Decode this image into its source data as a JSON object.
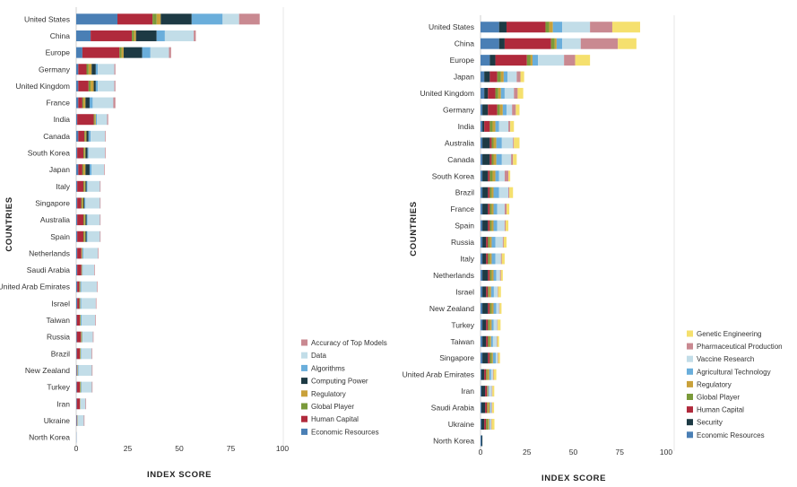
{
  "chart_data": [
    {
      "type": "bar",
      "orientation": "horizontal",
      "stacked": true,
      "xlabel": "INDEX SCORE",
      "ylabel": "COUNTRIES",
      "xlim": [
        0,
        100
      ],
      "xticks": [
        0,
        25,
        50,
        75,
        100
      ],
      "grid": false,
      "legend_position": "bottom-right",
      "legend_order": [
        "Accuracy of Top Models",
        "Data",
        "Algorithms",
        "Computing Power",
        "Regulatory",
        "Global Player",
        "Human Capital",
        "Economic Resources"
      ],
      "categories": [
        "United States",
        "China",
        "Europe",
        "Germany",
        "United Kingdom",
        "France",
        "India",
        "Canada",
        "South Korea",
        "Japan",
        "Italy",
        "Singapore",
        "Australia",
        "Spain",
        "Netherlands",
        "Saudi Arabia",
        "United Arab Emirates",
        "Israel",
        "Taiwan",
        "Russia",
        "Brazil",
        "New Zealand",
        "Turkey",
        "Iran",
        "Ukraine",
        "North Korea"
      ],
      "series": [
        {
          "name": "Economic Resources",
          "color": "#4a7fb5",
          "values": [
            20,
            7,
            3,
            1,
            1,
            1,
            0.5,
            1,
            0.5,
            1,
            0.5,
            0.5,
            0.5,
            0.5,
            0.5,
            0.5,
            0.5,
            0.5,
            0.3,
            0.3,
            0.3,
            0.3,
            0.3,
            0.3,
            0.3,
            0.1
          ]
        },
        {
          "name": "Human Capital",
          "color": "#b02a3c",
          "values": [
            17,
            20,
            18,
            4,
            5,
            2,
            8,
            3,
            3,
            2,
            3,
            2,
            3,
            3,
            2,
            2,
            1,
            1,
            1.5,
            2,
            1.5,
            0.2,
            1.5,
            1.5,
            0.2,
            0
          ]
        },
        {
          "name": "Global Player",
          "color": "#7a9a3a",
          "values": [
            2,
            1,
            1,
            1,
            1,
            0.5,
            0.5,
            0.5,
            0.5,
            0.5,
            0.5,
            0.5,
            0.5,
            0.5,
            0.2,
            0.2,
            0.2,
            0.3,
            0.2,
            0.2,
            0.2,
            0.1,
            0.2,
            0.1,
            0.1,
            0
          ]
        },
        {
          "name": "Regulatory",
          "color": "#c9a13a",
          "values": [
            2,
            1,
            1,
            1.5,
            1.5,
            1,
            0.5,
            0.5,
            0.5,
            1,
            0.5,
            0.5,
            0.5,
            0.5,
            0.3,
            0.2,
            0.3,
            0.2,
            0.2,
            0.3,
            0.2,
            0.2,
            0.3,
            0.1,
            0.1,
            0
          ]
        },
        {
          "name": "Computing Power",
          "color": "#1d3a44",
          "values": [
            15,
            10,
            9,
            2,
            1,
            2,
            0,
            1,
            1,
            2,
            0.5,
            0.5,
            0.5,
            0.5,
            0,
            0,
            0,
            0,
            0,
            0,
            0,
            0,
            0,
            0,
            0,
            0
          ]
        },
        {
          "name": "Algorithms",
          "color": "#6aaedb",
          "values": [
            15,
            4,
            4,
            1,
            1,
            1.5,
            0.5,
            1,
            0.5,
            1,
            0.5,
            0.5,
            0.5,
            0.5,
            0.5,
            0.3,
            0.5,
            0.5,
            0.5,
            0.3,
            0.3,
            0.3,
            0.3,
            0,
            0,
            0
          ]
        },
        {
          "name": "Data",
          "color": "#c2dde8",
          "values": [
            8,
            14,
            9,
            8,
            8,
            10,
            5,
            7,
            8,
            6,
            6,
            7,
            6,
            6,
            7,
            5.5,
            7.5,
            7,
            6.5,
            5,
            5,
            6.5,
            5,
            2.5,
            3,
            0
          ]
        },
        {
          "name": "Accuracy of Top Models",
          "color": "#c98991",
          "values": [
            10,
            1,
            1,
            0.5,
            0.5,
            1,
            0.5,
            0.3,
            0.3,
            0.3,
            0.3,
            0.3,
            0.3,
            0.3,
            0.3,
            0.3,
            0.3,
            0.3,
            0.3,
            0.3,
            0.3,
            0.3,
            0.3,
            0.3,
            0.3,
            0
          ]
        }
      ]
    },
    {
      "type": "bar",
      "orientation": "horizontal",
      "stacked": true,
      "xlabel": "INDEX SCORE",
      "ylabel": "COUNTRIES",
      "xlim": [
        0,
        100
      ],
      "xticks": [
        0,
        25,
        50,
        75,
        100
      ],
      "grid": false,
      "legend_position": "bottom-right",
      "legend_order": [
        "Genetic Engineering",
        "Pharmaceutical Production",
        "Vaccine Research",
        "Agricultural Technology",
        "Regulatory",
        "Global Player",
        "Human Capital",
        "Security",
        "Economic Resources"
      ],
      "categories": [
        "United States",
        "China",
        "Europe",
        "Japan",
        "United Kingdom",
        "Germany",
        "India",
        "Australia",
        "Canada",
        "South Korea",
        "Brazil",
        "France",
        "Spain",
        "Russia",
        "Italy",
        "Netherlands",
        "Israel",
        "New Zealand",
        "Turkey",
        "Taiwan",
        "Singapore",
        "United Arab Emirates",
        "Iran",
        "Saudi Arabia",
        "Ukraine",
        "North Korea"
      ],
      "series": [
        {
          "name": "Economic Resources",
          "color": "#4a7fb5",
          "values": [
            10,
            10,
            5,
            2,
            2,
            1,
            1,
            1,
            1,
            1,
            1,
            1,
            1,
            1,
            1,
            1,
            1,
            1,
            1,
            1,
            1,
            0.5,
            0.5,
            0.5,
            0.5,
            0.5
          ]
        },
        {
          "name": "Security",
          "color": "#1d3a44",
          "values": [
            4,
            3,
            3,
            3,
            2,
            3,
            1,
            4,
            4,
            3,
            3,
            3,
            3,
            2,
            2,
            3,
            2,
            3,
            2,
            2,
            3,
            1.5,
            2,
            2,
            1.5,
            0.5
          ]
        },
        {
          "name": "Human Capital",
          "color": "#b02a3c",
          "values": [
            21,
            25,
            17,
            4,
            4,
            5,
            3,
            1,
            1,
            1,
            1,
            1,
            1,
            1,
            1,
            1,
            1,
            1,
            1,
            1,
            1,
            1,
            1,
            1,
            1,
            0
          ]
        },
        {
          "name": "Global Player",
          "color": "#7a9a3a",
          "values": [
            2,
            2,
            2,
            2,
            1.5,
            1.5,
            1.5,
            1,
            1,
            1.5,
            1,
            1,
            1,
            1,
            1,
            1,
            0.7,
            1,
            1,
            1,
            1,
            0.7,
            0.3,
            0.5,
            1,
            0
          ]
        },
        {
          "name": "Regulatory",
          "color": "#c9a13a",
          "values": [
            2,
            1,
            1,
            1.5,
            1.5,
            1.5,
            1.5,
            1.5,
            1.5,
            1.5,
            1,
            1,
            1,
            1,
            1,
            1,
            1,
            1,
            1,
            0.7,
            0.7,
            1,
            0.3,
            1,
            0.7,
            0
          ]
        },
        {
          "name": "Agricultural Technology",
          "color": "#6aaedb",
          "values": [
            5,
            3,
            3,
            2,
            2,
            2,
            2,
            3,
            3,
            2,
            3,
            2,
            2,
            2,
            2,
            1.5,
            1.5,
            1.5,
            1,
            1,
            1.5,
            1,
            0.5,
            0.5,
            0.5,
            0
          ]
        },
        {
          "name": "Vaccine Research",
          "color": "#c2dde8",
          "values": [
            15,
            10,
            14,
            5,
            5,
            3,
            5,
            6,
            5,
            3,
            5,
            4,
            4,
            4,
            3,
            2,
            2,
            1.5,
            2,
            2,
            1,
            1,
            1.5,
            0.5,
            0.5,
            0
          ]
        },
        {
          "name": "Pharmaceutical Production",
          "color": "#c98991",
          "values": [
            12,
            20,
            6,
            2,
            2,
            2,
            1,
            0.5,
            1,
            2,
            0.5,
            1,
            0.5,
            0.5,
            0.5,
            0.5,
            0.3,
            0.3,
            0.3,
            0.3,
            0.3,
            0.3,
            0.3,
            0.3,
            0.3,
            0
          ]
        },
        {
          "name": "Genetic Engineering",
          "color": "#f5e06e",
          "values": [
            15,
            10,
            8,
            2,
            3,
            2,
            2,
            3,
            2,
            1,
            2,
            1.5,
            1.5,
            1.5,
            1.5,
            1,
            1.5,
            1,
            1.5,
            1,
            1,
            1.5,
            1,
            1,
            1.5,
            0
          ]
        }
      ]
    }
  ]
}
